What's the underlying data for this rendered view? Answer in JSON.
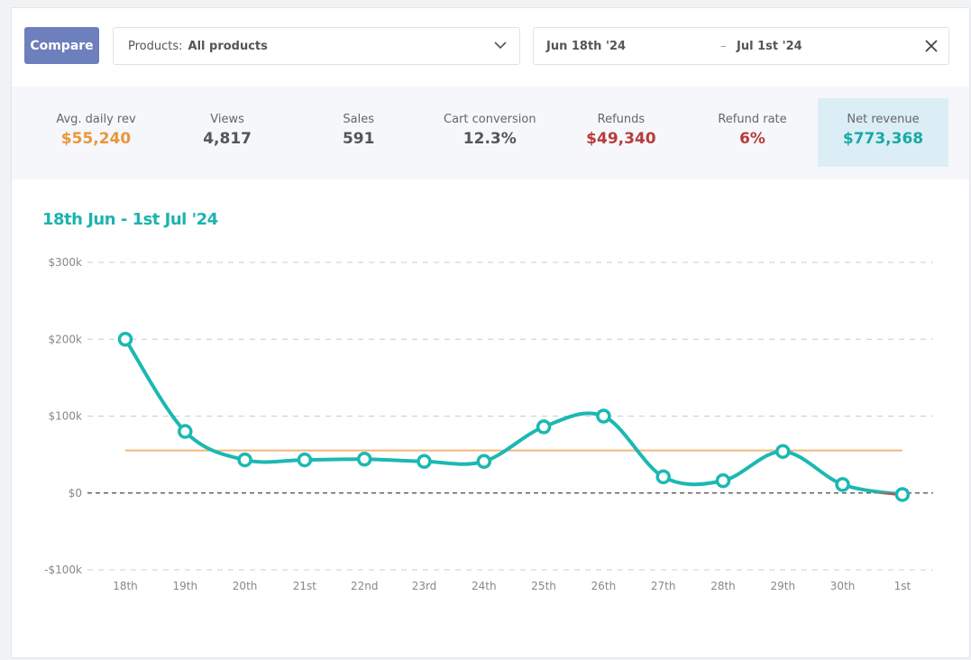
{
  "header": {
    "compare": "Compare",
    "products_label": "Products:",
    "products_value": "All products",
    "date_from": "Jun 18th '24",
    "date_sep": "–",
    "date_to": "Jul 1st '24"
  },
  "stats": [
    {
      "label": "Avg. daily rev",
      "value": "$55,240",
      "color": "#e8973a"
    },
    {
      "label": "Views",
      "value": "4,817",
      "color": "#555555"
    },
    {
      "label": "Sales",
      "value": "591",
      "color": "#555555"
    },
    {
      "label": "Cart conversion",
      "value": "12.3%",
      "color": "#555555"
    },
    {
      "label": "Refunds",
      "value": "$49,340",
      "color": "#b83b3b"
    },
    {
      "label": "Refund rate",
      "value": "6%",
      "color": "#b83b3b"
    },
    {
      "label": "Net revenue",
      "value": "$773,368",
      "color": "#1aa9a4"
    }
  ],
  "chart_data": {
    "type": "line",
    "title": "18th Jun - 1st Jul '24",
    "categories": [
      "18th",
      "19th",
      "20th",
      "21st",
      "22nd",
      "23rd",
      "24th",
      "25th",
      "26th",
      "27th",
      "28th",
      "29th",
      "30th",
      "1st"
    ],
    "series": [
      {
        "name": "Net revenue",
        "color": "#1cb8b2",
        "negative_color": "#c0504d",
        "values": [
          200000,
          80000,
          43000,
          43000,
          44000,
          41000,
          41000,
          86000,
          100000,
          21000,
          16000,
          54000,
          11000,
          -2000
        ]
      }
    ],
    "average": 55240,
    "average_color": "#f2b87c",
    "ylim": [
      -100000,
      300000
    ],
    "yticks": [
      {
        "value": -100000,
        "label": "-$100k"
      },
      {
        "value": 0,
        "label": "$0"
      },
      {
        "value": 100000,
        "label": "$100k"
      },
      {
        "value": 200000,
        "label": "$200k"
      },
      {
        "value": 300000,
        "label": "$300k"
      }
    ],
    "grid": true
  }
}
